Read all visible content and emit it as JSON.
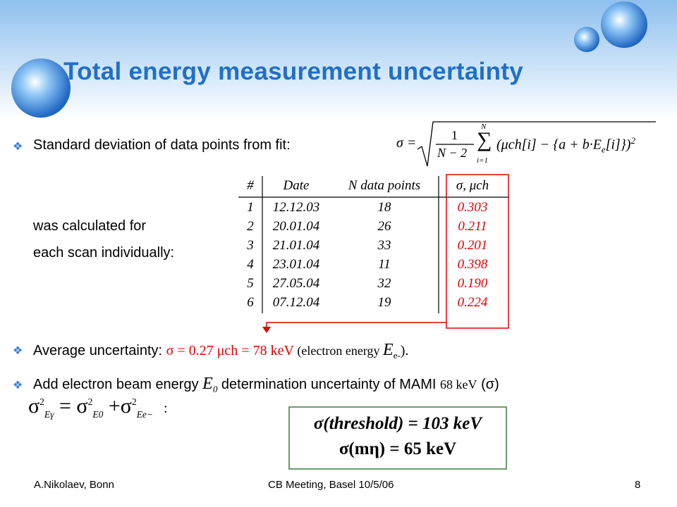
{
  "title": "Total energy measurement uncertainty",
  "bullet1": {
    "text": "Standard deviation of data points from fit:",
    "formula": {
      "lhs": "σ =",
      "num": "1",
      "den": "N − 2",
      "sum": "∑",
      "top": "N",
      "bottom": "i=1",
      "body": "(μch[i] − {a + b·E",
      "sub": "e",
      "tail": "[i]})",
      "power": "2"
    }
  },
  "paragraph": [
    "was calculated for",
    "each scan individually:"
  ],
  "table": {
    "header": [
      "#",
      "Date",
      "N data points",
      "σ, μch"
    ],
    "rows": [
      [
        "1",
        "12.12.03",
        "18",
        "0.303"
      ],
      [
        "2",
        "20.01.04",
        "26",
        "0.211"
      ],
      [
        "3",
        "21.01.04",
        "33",
        "0.201"
      ],
      [
        "4",
        "23.01.04",
        "11",
        "0.398"
      ],
      [
        "5",
        "27.05.04",
        "32",
        "0.190"
      ],
      [
        "6",
        "07.12.04",
        "19",
        "0.224"
      ]
    ]
  },
  "bullet2": {
    "text": "Average uncertainty: ",
    "value": "σ = 0.27 μch = 78 keV",
    "note": " (electron energy ",
    "symbol": "E",
    "sub": "e-",
    "end": ")."
  },
  "bullet3": {
    "text": "Add electron beam energy ",
    "symbol": "E",
    "sub": "0",
    "middle": " determination uncertainty of MAMI ",
    "value": "68 keV",
    "end": " (σ)",
    "formula": {
      "t1": "σ",
      "s1": "Eγ",
      "p": "2",
      "eq": "=",
      "t2": "σ",
      "s2": "E0",
      "plus": "+",
      "t3": "σ",
      "s3": "Ee−",
      "colon": ":"
    }
  },
  "results": [
    "σ(threshold) = 103 keV",
    "σ(mη) = 65 keV"
  ],
  "footer": {
    "left": "A.Nikolaev, Bonn",
    "center": "CB Meeting, Basel 10/5/06",
    "page": "8"
  }
}
